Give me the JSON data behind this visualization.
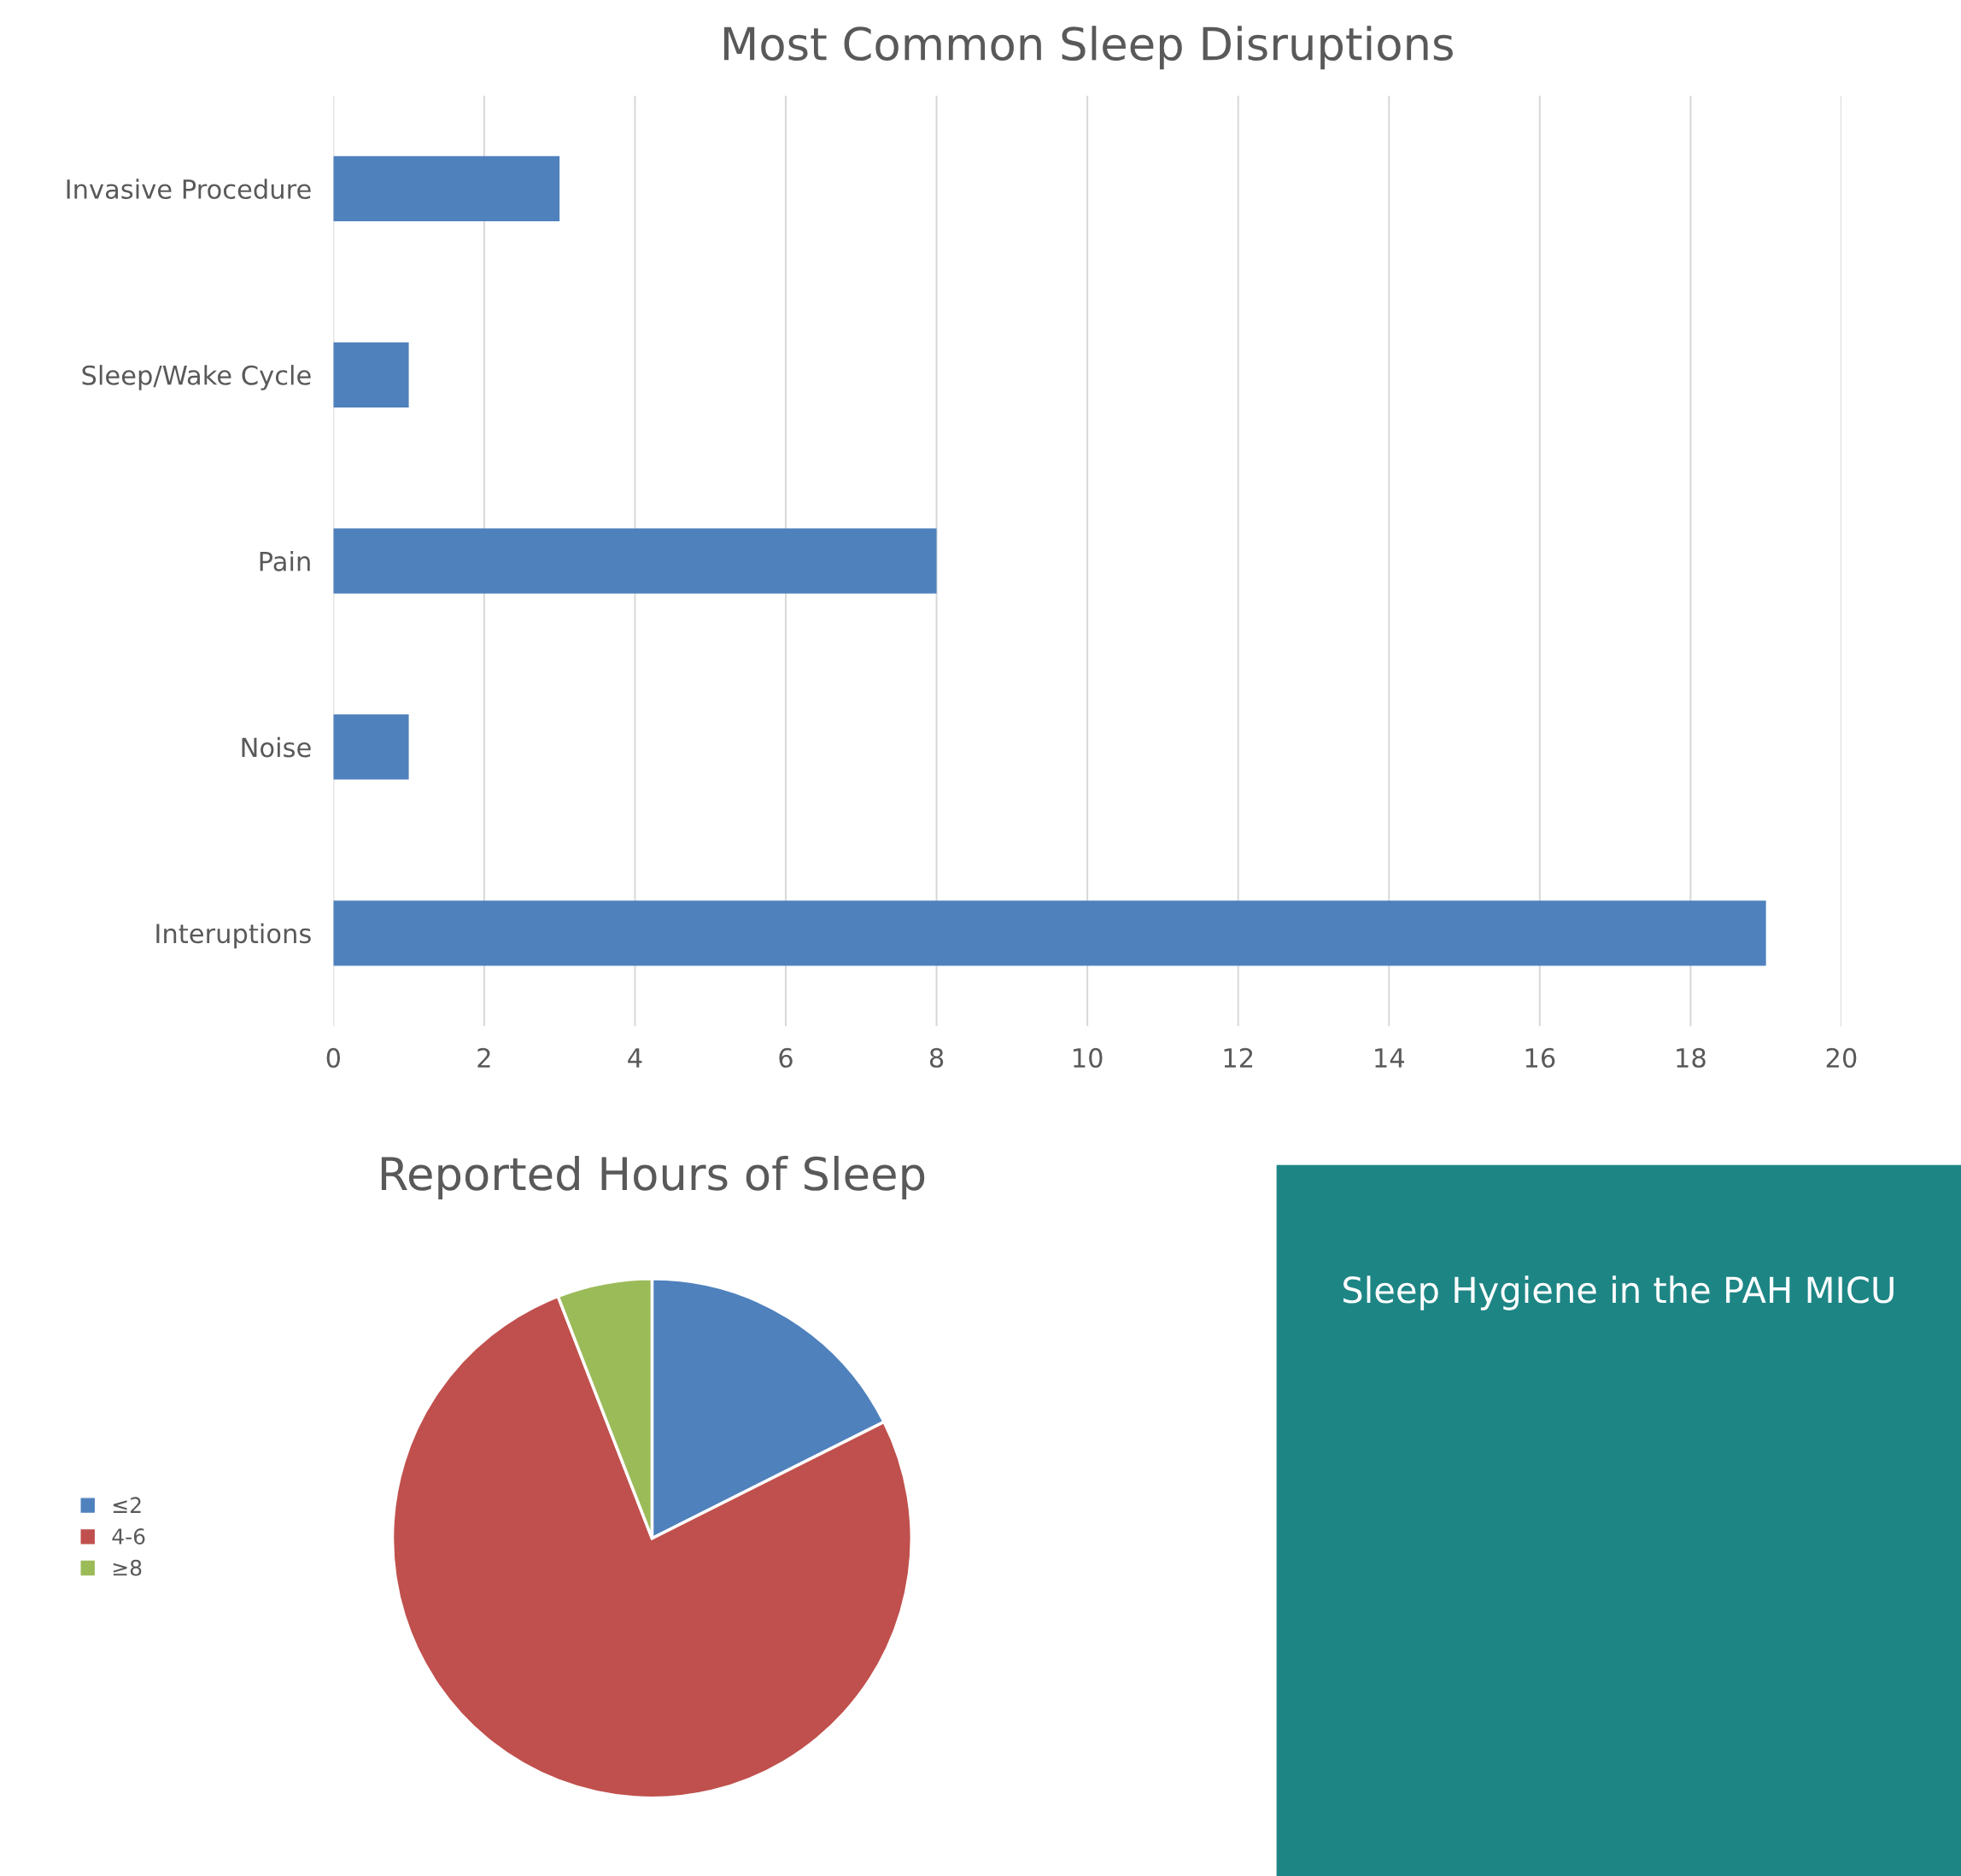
{
  "chart_data": [
    {
      "type": "bar",
      "orientation": "horizontal",
      "title": "Most Common Sleep Disruptions",
      "categories": [
        "Invasive Procedure",
        "Sleep/Wake Cycle",
        "Pain",
        "Noise",
        "Interuptions"
      ],
      "values": [
        3,
        1,
        8,
        1,
        19
      ],
      "color": "#4f81bd",
      "xlim": [
        0,
        20
      ],
      "xticks": [
        0,
        2,
        4,
        6,
        8,
        10,
        12,
        14,
        16,
        18,
        20
      ],
      "grid": "x",
      "legend": false
    },
    {
      "type": "pie",
      "title": "Reported Hours of Sleep",
      "categories": [
        "≤2",
        "4-6",
        "≥8"
      ],
      "values": [
        17.6,
        76.5,
        5.9
      ],
      "colors": [
        "#4f81bd",
        "#c0504d",
        "#9bbb59"
      ],
      "legend": "left"
    },
    {
      "type": "other",
      "title": "Sleep Hygiene in the PAH MICU"
    }
  ]
}
